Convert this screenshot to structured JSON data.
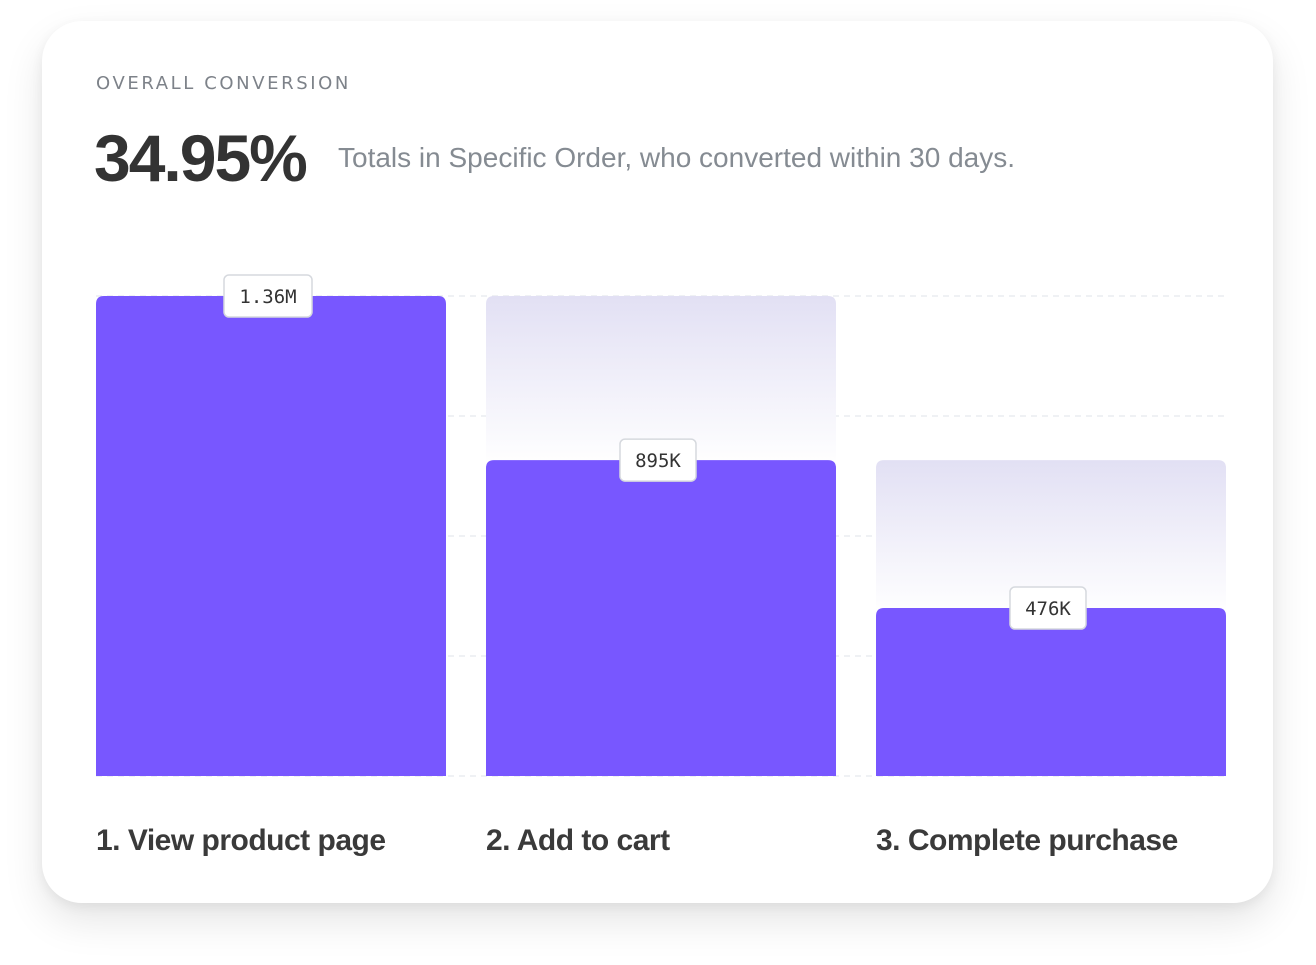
{
  "header": {
    "eyebrow": "OVERALL CONVERSION",
    "conversion_rate": "34.95%",
    "description": "Totals in Specific Order, who converted within 30 days."
  },
  "colors": {
    "bar": "#7857ff",
    "ghost_bar_top": "#e2e0f4",
    "ghost_bar_bottom": "#ffffff",
    "grid": "#dfe3ea",
    "badge_border": "#d6d9de"
  },
  "chart_data": {
    "type": "bar",
    "categories": [
      "1. View product page",
      "2. Add to cart",
      "3. Complete purchase"
    ],
    "values": [
      1360000,
      895000,
      476000
    ],
    "value_labels": [
      "1.36M",
      "895K",
      "476K"
    ],
    "previous_step_values": [
      null,
      1360000,
      895000
    ],
    "ylim": [
      0,
      1360000
    ],
    "grid": true,
    "title": "",
    "xlabel": "",
    "ylabel": ""
  }
}
